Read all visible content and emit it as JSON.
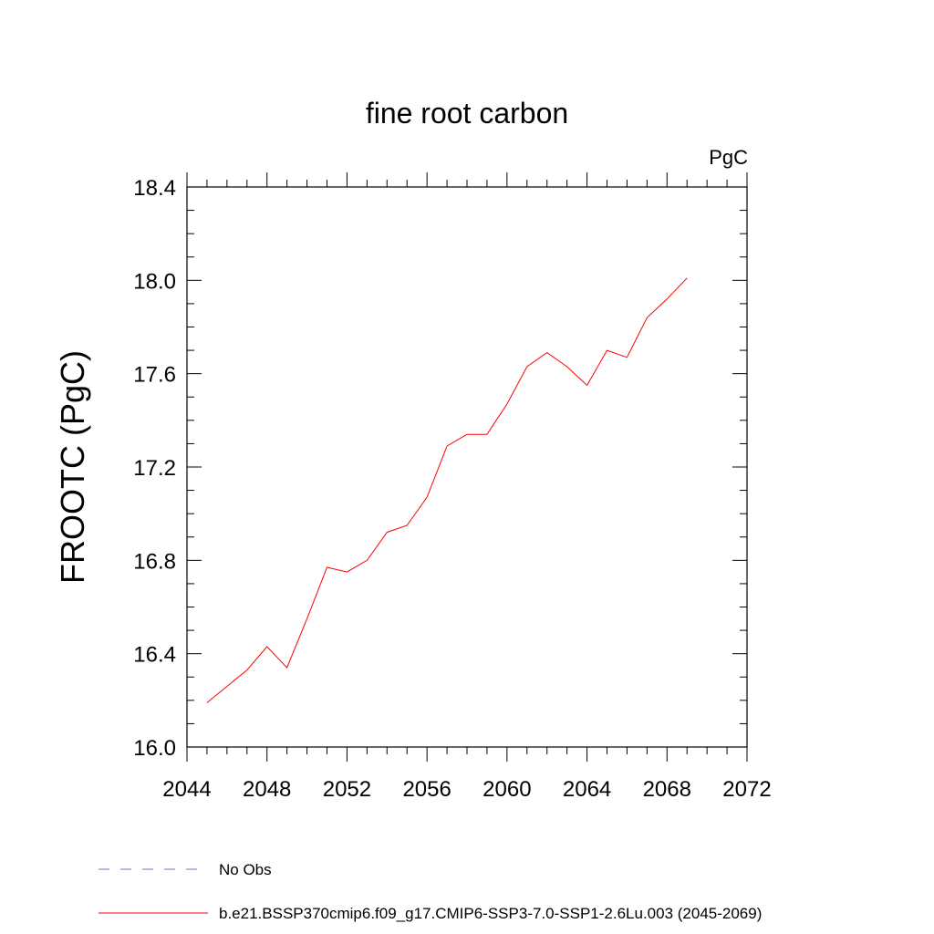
{
  "chart_data": {
    "type": "line",
    "title": "fine root carbon",
    "units_label": "PgC",
    "xlabel": "",
    "ylabel": "FROOTC  (PgC)",
    "xlim": [
      2044,
      2072
    ],
    "ylim": [
      16.0,
      18.4
    ],
    "x_ticks": [
      2044,
      2048,
      2052,
      2056,
      2060,
      2064,
      2068,
      2072
    ],
    "x_tick_labels": [
      "2044",
      "2048",
      "2052",
      "2056",
      "2060",
      "2064",
      "2068",
      "2072"
    ],
    "y_ticks": [
      16.0,
      16.4,
      16.8,
      17.2,
      17.6,
      18.0,
      18.4
    ],
    "y_tick_labels": [
      "16.0",
      "16.4",
      "16.8",
      "17.2",
      "17.6",
      "18.0",
      "18.4"
    ],
    "grid": false,
    "legend_position": "bottom",
    "series": [
      {
        "name": "b.e21.BSSP370cmip6.f09_g17.CMIP6-SSP3-7.0-SSP1-2.6Lu.003 (2045-2069)",
        "color": "#ff0000",
        "style": "solid",
        "x": [
          2045,
          2046,
          2047,
          2048,
          2049,
          2050,
          2051,
          2052,
          2053,
          2054,
          2055,
          2056,
          2057,
          2058,
          2059,
          2060,
          2061,
          2062,
          2063,
          2064,
          2065,
          2066,
          2067,
          2068,
          2069
        ],
        "y": [
          16.19,
          16.26,
          16.33,
          16.43,
          16.34,
          16.55,
          16.77,
          16.75,
          16.8,
          16.92,
          16.95,
          17.07,
          17.29,
          17.34,
          17.34,
          17.47,
          17.63,
          17.69,
          17.63,
          17.55,
          17.7,
          17.67,
          17.84,
          17.92,
          18.01
        ]
      }
    ],
    "legend": [
      {
        "label": "No Obs",
        "color": "#7a6fc4",
        "style": "dashed"
      },
      {
        "label": "b.e21.BSSP370cmip6.f09_g17.CMIP6-SSP3-7.0-SSP1-2.6Lu.003 (2045-2069)",
        "color": "#ff0000",
        "style": "solid"
      }
    ]
  }
}
